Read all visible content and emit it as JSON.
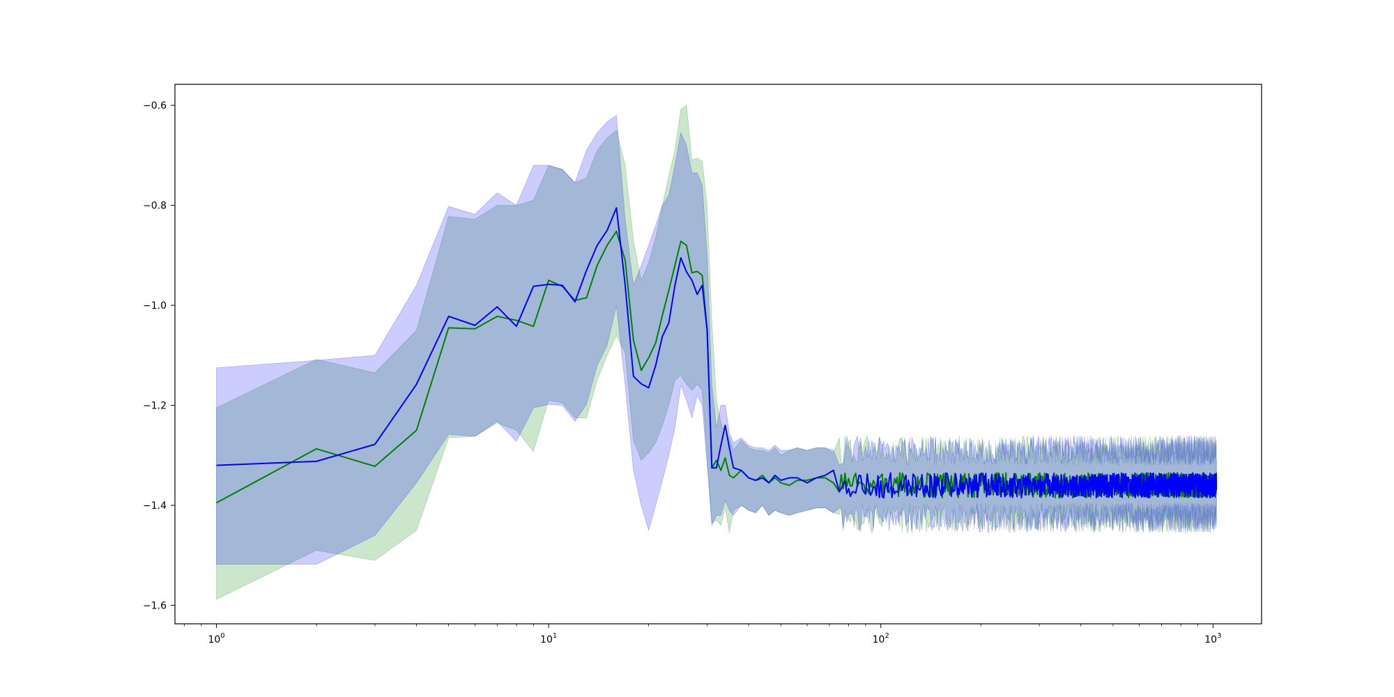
{
  "chart_data": {
    "type": "line",
    "title": "",
    "xlabel": "",
    "ylabel": "",
    "x_scale": "log",
    "xlim": [
      0.75,
      1400
    ],
    "ylim": [
      -1.637,
      -0.558
    ],
    "grid": false,
    "legend": "none",
    "x_ticks": [
      {
        "value": 1,
        "base": "10",
        "exp": "0"
      },
      {
        "value": 10,
        "base": "10",
        "exp": "1"
      },
      {
        "value": 100,
        "base": "10",
        "exp": "2"
      },
      {
        "value": 1000,
        "base": "10",
        "exp": "3"
      }
    ],
    "y_ticks": [
      {
        "value": -0.6,
        "label": "−0.6"
      },
      {
        "value": -0.8,
        "label": "−0.8"
      },
      {
        "value": -1.0,
        "label": "−1.0"
      },
      {
        "value": -1.2,
        "label": "−1.2"
      },
      {
        "value": -1.4,
        "label": "−1.4"
      },
      {
        "value": -1.6,
        "label": "−1.6"
      }
    ],
    "noisy_tail": {
      "x_start": 75,
      "x_end": 1024,
      "mean_level": -1.36,
      "mean_amplitude": 0.025,
      "band_upper_level": -1.29,
      "band_lower_level": -1.425,
      "band_amplitude": 0.03
    },
    "series": [
      {
        "color": "#008000",
        "band_color": "#008000",
        "band_opacity": 0.2,
        "x": [
          1,
          2,
          3,
          4,
          5,
          6,
          7,
          8,
          9,
          10,
          11,
          12,
          13,
          14,
          15,
          16,
          17,
          18,
          19,
          20,
          21,
          22,
          23,
          24,
          25,
          26,
          27,
          28,
          29,
          30,
          31,
          32,
          33,
          34,
          35,
          36,
          38,
          40,
          42,
          44,
          46,
          48,
          50,
          53,
          56,
          60,
          64,
          68,
          72
        ],
        "y": [
          -1.395,
          -1.287,
          -1.322,
          -1.25,
          -1.045,
          -1.047,
          -1.022,
          -1.03,
          -1.042,
          -0.95,
          -0.962,
          -0.99,
          -0.985,
          -0.92,
          -0.88,
          -0.852,
          -0.91,
          -1.07,
          -1.13,
          -1.105,
          -1.075,
          -1.02,
          -0.97,
          -0.92,
          -0.872,
          -0.88,
          -0.935,
          -0.932,
          -0.94,
          -1.05,
          -1.325,
          -1.31,
          -1.33,
          -1.305,
          -1.34,
          -1.345,
          -1.33,
          -1.345,
          -1.35,
          -1.34,
          -1.355,
          -1.345,
          -1.355,
          -1.36,
          -1.35,
          -1.35,
          -1.345,
          -1.345,
          -1.355
        ],
        "upper": [
          -1.205,
          -1.108,
          -1.135,
          -1.05,
          -0.822,
          -0.828,
          -0.8,
          -0.8,
          -0.79,
          -0.72,
          -0.728,
          -0.755,
          -0.745,
          -0.69,
          -0.665,
          -0.65,
          -0.72,
          -0.87,
          -0.95,
          -0.915,
          -0.865,
          -0.8,
          -0.74,
          -0.69,
          -0.608,
          -0.6,
          -0.71,
          -0.705,
          -0.712,
          -0.8,
          -1.035,
          -1.19,
          -1.235,
          -1.255,
          -1.265,
          -1.29,
          -1.27,
          -1.285,
          -1.29,
          -1.29,
          -1.295,
          -1.285,
          -1.3,
          -1.29,
          -1.285,
          -1.29,
          -1.285,
          -1.285,
          -1.295
        ],
        "lower": [
          -1.588,
          -1.49,
          -1.51,
          -1.45,
          -1.265,
          -1.262,
          -1.235,
          -1.25,
          -1.292,
          -1.19,
          -1.195,
          -1.225,
          -1.225,
          -1.15,
          -1.1,
          -1.06,
          -1.095,
          -1.27,
          -1.31,
          -1.295,
          -1.275,
          -1.24,
          -1.2,
          -1.15,
          -1.14,
          -1.158,
          -1.17,
          -1.158,
          -1.17,
          -1.3,
          -1.435,
          -1.43,
          -1.44,
          -1.405,
          -1.455,
          -1.41,
          -1.4,
          -1.41,
          -1.415,
          -1.4,
          -1.42,
          -1.41,
          -1.415,
          -1.42,
          -1.415,
          -1.41,
          -1.405,
          -1.405,
          -1.415
        ],
        "noise_seed": 7
      },
      {
        "color": "#0000ff",
        "band_color": "#0000ff",
        "band_opacity": 0.2,
        "x": [
          1,
          2,
          3,
          4,
          5,
          6,
          7,
          8,
          9,
          10,
          11,
          12,
          13,
          14,
          15,
          16,
          17,
          18,
          19,
          20,
          21,
          22,
          23,
          24,
          25,
          26,
          27,
          28,
          29,
          30,
          31,
          32,
          33,
          34,
          35,
          36,
          38,
          40,
          42,
          44,
          46,
          48,
          50,
          53,
          56,
          60,
          64,
          68,
          72
        ],
        "y": [
          -1.32,
          -1.312,
          -1.278,
          -1.158,
          -1.022,
          -1.04,
          -1.003,
          -1.042,
          -0.962,
          -0.958,
          -0.96,
          -0.993,
          -0.93,
          -0.88,
          -0.85,
          -0.805,
          -0.96,
          -1.142,
          -1.157,
          -1.165,
          -1.12,
          -1.062,
          -1.035,
          -0.96,
          -0.905,
          -0.933,
          -0.95,
          -0.978,
          -0.96,
          -1.05,
          -1.325,
          -1.325,
          -1.28,
          -1.24,
          -1.285,
          -1.325,
          -1.33,
          -1.345,
          -1.35,
          -1.345,
          -1.355,
          -1.34,
          -1.35,
          -1.345,
          -1.345,
          -1.355,
          -1.345,
          -1.34,
          -1.33
        ],
        "upper": [
          -1.125,
          -1.11,
          -1.1,
          -0.96,
          -0.802,
          -0.818,
          -0.775,
          -0.8,
          -0.72,
          -0.72,
          -0.728,
          -0.755,
          -0.69,
          -0.655,
          -0.633,
          -0.62,
          -0.83,
          -0.96,
          -0.92,
          -0.88,
          -0.84,
          -0.8,
          -0.78,
          -0.72,
          -0.655,
          -0.68,
          -0.735,
          -0.735,
          -0.76,
          -0.9,
          -1.16,
          -1.245,
          -1.2,
          -1.2,
          -1.255,
          -1.275,
          -1.265,
          -1.28,
          -1.285,
          -1.285,
          -1.29,
          -1.28,
          -1.29,
          -1.29,
          -1.285,
          -1.29,
          -1.285,
          -1.285,
          -1.29
        ],
        "lower": [
          -1.518,
          -1.518,
          -1.46,
          -1.355,
          -1.258,
          -1.262,
          -1.232,
          -1.272,
          -1.205,
          -1.198,
          -1.2,
          -1.232,
          -1.198,
          -1.12,
          -1.08,
          -1.0,
          -1.16,
          -1.33,
          -1.4,
          -1.45,
          -1.4,
          -1.35,
          -1.3,
          -1.245,
          -1.16,
          -1.19,
          -1.225,
          -1.18,
          -1.2,
          -1.32,
          -1.44,
          -1.42,
          -1.42,
          -1.39,
          -1.41,
          -1.42,
          -1.4,
          -1.41,
          -1.415,
          -1.4,
          -1.42,
          -1.41,
          -1.415,
          -1.42,
          -1.415,
          -1.41,
          -1.405,
          -1.405,
          -1.415
        ],
        "noise_seed": 19
      }
    ]
  }
}
